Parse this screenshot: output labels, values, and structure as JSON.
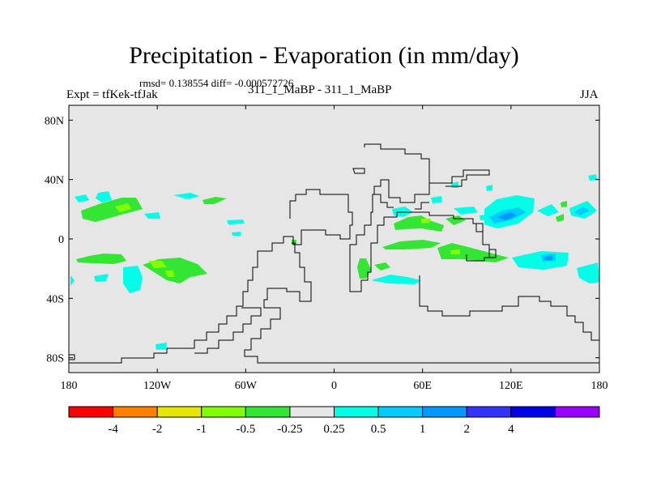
{
  "title": "Precipitation - Evaporation (in mm/day)",
  "stats": "rmsd= 0.138554 diff= -0.000572726",
  "left_label": "Expt = tfKek-tfJak",
  "center_label": "311_1_MaBP - 311_1_MaBP",
  "right_label": "JJA",
  "lat_ticks": [
    {
      "label": "80N",
      "lat": 80
    },
    {
      "label": "40N",
      "lat": 40
    },
    {
      "label": "0",
      "lat": 0
    },
    {
      "label": "40S",
      "lat": -40
    },
    {
      "label": "80S",
      "lat": -80
    }
  ],
  "lon_ticks": [
    {
      "label": "180",
      "lon": -180
    },
    {
      "label": "120W",
      "lon": -120
    },
    {
      "label": "60W",
      "lon": -60
    },
    {
      "label": "0",
      "lon": 0
    },
    {
      "label": "60E",
      "lon": 60
    },
    {
      "label": "120E",
      "lon": 120
    },
    {
      "label": "180",
      "lon": 180
    }
  ],
  "colorbar": {
    "colors": [
      "#ff0000",
      "#ff8000",
      "#e6e600",
      "#80ff00",
      "#33e633",
      "#e6e6e6",
      "#00ffe6",
      "#00ccff",
      "#0099ff",
      "#3333ff",
      "#0000e6",
      "#9900ff"
    ],
    "labels": [
      "-4",
      "-2",
      "-1",
      "-0.5",
      "-0.25",
      "0.25",
      "0.5",
      "1",
      "2",
      "4"
    ]
  },
  "colors": {
    "background": "#e6e6e6",
    "coast": "#000000"
  }
}
